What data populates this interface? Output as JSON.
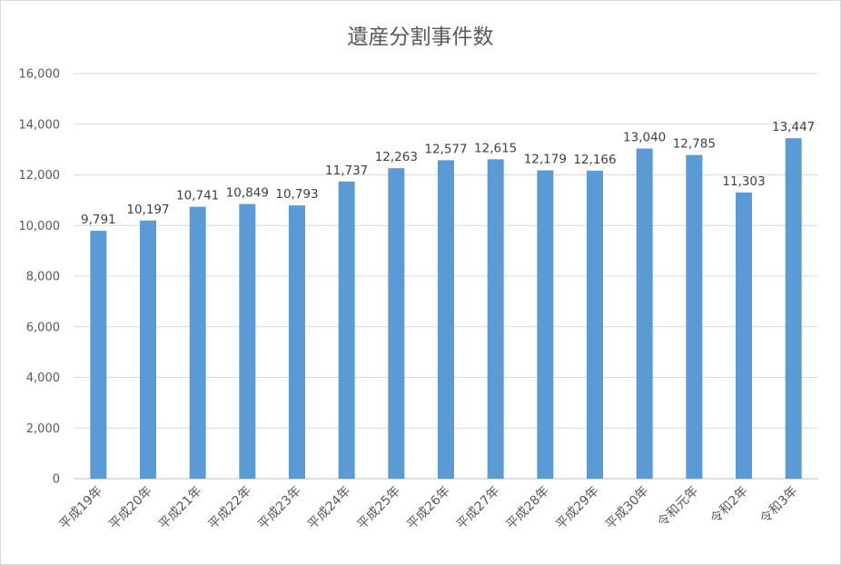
{
  "chart_data": {
    "type": "bar",
    "title": "遺産分割事件数",
    "xlabel": "",
    "ylabel": "",
    "ylim": [
      0,
      16000
    ],
    "yticks": [
      "0",
      "2,000",
      "4,000",
      "6,000",
      "8,000",
      "10,000",
      "12,000",
      "14,000",
      "16,000"
    ],
    "categories": [
      "平成19年",
      "平成20年",
      "平成21年",
      "平成22年",
      "平成23年",
      "平成24年",
      "平成25年",
      "平成26年",
      "平成27年",
      "平成28年",
      "平成29年",
      "平成30年",
      "令和元年",
      "令和2年",
      "令和3年"
    ],
    "values": [
      9791,
      10197,
      10741,
      10849,
      10793,
      11737,
      12263,
      12577,
      12615,
      12179,
      12166,
      13040,
      12785,
      11303,
      13447
    ],
    "data_labels": [
      "9,791",
      "10,197",
      "10,741",
      "10,849",
      "10,793",
      "11,737",
      "12,263",
      "12,577",
      "12,615",
      "12,179",
      "12,166",
      "13,040",
      "12,785",
      "11,303",
      "13,447"
    ],
    "bar_color": "#5b9bd5",
    "grid": true,
    "legend": "none"
  }
}
